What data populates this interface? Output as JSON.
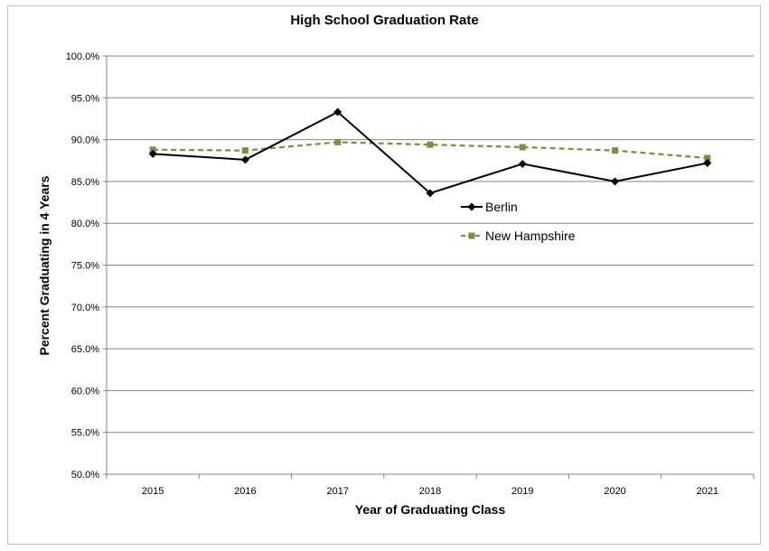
{
  "chart_data": {
    "type": "line",
    "title": "High School Graduation Rate",
    "xlabel": "Year of Graduating Class",
    "ylabel": "Percent Graduating in 4 Years",
    "categories": [
      "2015",
      "2016",
      "2017",
      "2018",
      "2019",
      "2020",
      "2021"
    ],
    "yticks": [
      "50.0%",
      "55.0%",
      "60.0%",
      "65.0%",
      "70.0%",
      "75.0%",
      "80.0%",
      "85.0%",
      "90.0%",
      "95.0%",
      "100.0%"
    ],
    "ylim": [
      50,
      100
    ],
    "grid": true,
    "legend_position": "right-inside",
    "series": [
      {
        "name": "Berlin",
        "values": [
          88.3,
          87.6,
          93.3,
          83.6,
          87.1,
          85.0,
          87.2
        ],
        "color": "#000000",
        "marker": "diamond",
        "line_style": "solid"
      },
      {
        "name": "New Hampshire",
        "values": [
          88.8,
          88.7,
          89.7,
          89.4,
          89.1,
          88.7,
          87.8
        ],
        "color": "#77933c",
        "marker": "square",
        "line_style": "dashed"
      }
    ]
  }
}
